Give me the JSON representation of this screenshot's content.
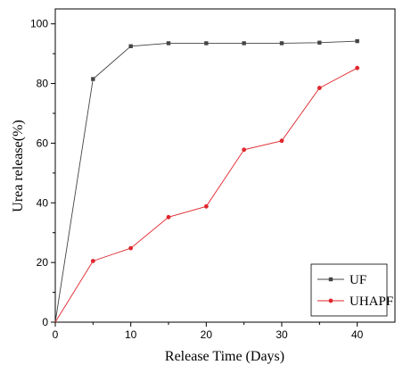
{
  "chart_data": {
    "type": "line",
    "xlabel": "Release Time (Days)",
    "ylabel": "Urea release(%)",
    "xlim": [
      0,
      45
    ],
    "ylim": [
      0,
      105
    ],
    "xticks": [
      0,
      10,
      20,
      30,
      40
    ],
    "yticks": [
      0,
      20,
      40,
      60,
      80,
      100
    ],
    "x": [
      0,
      5,
      10,
      15,
      20,
      25,
      30,
      35,
      40
    ],
    "grid": false,
    "legend_position": "bottom-right",
    "series": [
      {
        "name": "UF",
        "color": "#444444",
        "marker": "square",
        "values": [
          0,
          81.5,
          92.5,
          93.5,
          93.5,
          93.5,
          93.5,
          93.7,
          94.2
        ]
      },
      {
        "name": "UHAPF",
        "color": "#e0262d",
        "marker": "circle",
        "values": [
          0,
          20.5,
          24.8,
          35.2,
          38.8,
          57.8,
          60.8,
          78.5,
          85.2
        ]
      }
    ]
  }
}
